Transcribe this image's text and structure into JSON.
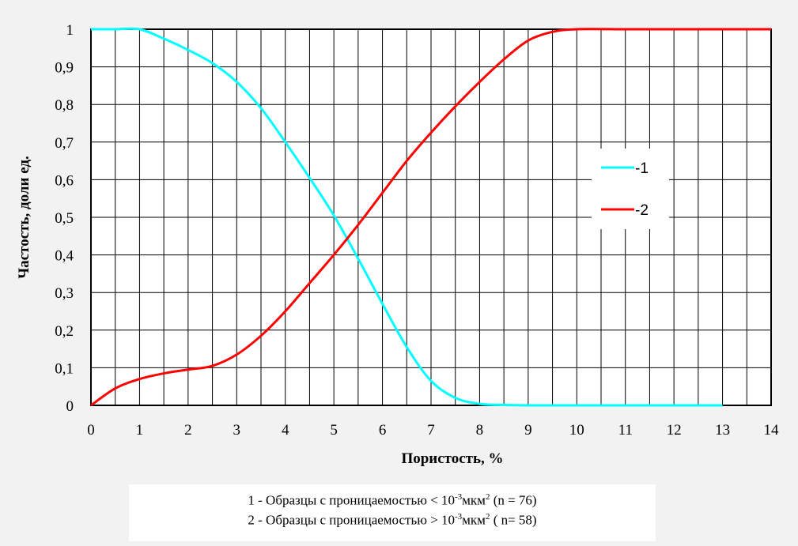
{
  "chart_data": {
    "type": "line",
    "xlabel": "Пористость,  %",
    "ylabel": "Частость,  доли ед.",
    "xlim": [
      0,
      14
    ],
    "ylim": [
      0,
      1
    ],
    "x_ticks": [
      "0",
      "1",
      "2",
      "3",
      "4",
      "5",
      "6",
      "7",
      "8",
      "9",
      "10",
      "11",
      "12",
      "13",
      "14"
    ],
    "y_ticks": [
      "0",
      "0,1",
      "0,2",
      "0,3",
      "0,4",
      "0,5",
      "0,6",
      "0,7",
      "0,8",
      "0,9",
      "1"
    ],
    "x_grid_step": 0.5,
    "y_grid_step": 0.1,
    "grid": true,
    "legend_position": "right",
    "series": [
      {
        "name": "-1",
        "color": "#00ffff",
        "x": [
          0,
          0.5,
          1,
          1.5,
          2,
          2.5,
          3,
          3.5,
          4,
          4.5,
          5,
          5.5,
          6,
          6.5,
          7,
          7.5,
          8,
          8.5,
          9,
          10,
          11,
          12,
          13
        ],
        "y": [
          1,
          1,
          1,
          0.975,
          0.945,
          0.91,
          0.86,
          0.79,
          0.7,
          0.605,
          0.505,
          0.39,
          0.27,
          0.155,
          0.065,
          0.02,
          0.004,
          0.001,
          0,
          0,
          0,
          0,
          0
        ]
      },
      {
        "name": "-2",
        "color": "#ff0000",
        "x": [
          0,
          0.5,
          1,
          1.5,
          2,
          2.5,
          3,
          3.5,
          4,
          4.5,
          5,
          5.5,
          6,
          6.5,
          7,
          7.5,
          8,
          8.5,
          9,
          9.5,
          10,
          11,
          12,
          13,
          14
        ],
        "y": [
          0,
          0.045,
          0.07,
          0.085,
          0.095,
          0.105,
          0.135,
          0.185,
          0.25,
          0.325,
          0.4,
          0.48,
          0.565,
          0.65,
          0.725,
          0.795,
          0.86,
          0.92,
          0.97,
          0.993,
          1,
          1,
          1,
          1,
          1
        ]
      }
    ]
  },
  "notes": {
    "line1_pre": "1 - Образцы с проницаемостью  < 10",
    "line1_sup": "-3",
    "line1_mid": "мкм",
    "line1_sup2": "2",
    "line1_post": " (n = 76)",
    "line2_pre": "2 - Образцы с проницаемостью > 10",
    "line2_sup": "-3",
    "line2_mid": "мкм",
    "line2_sup2": "2",
    "line2_post": "  ( n= 58)"
  }
}
